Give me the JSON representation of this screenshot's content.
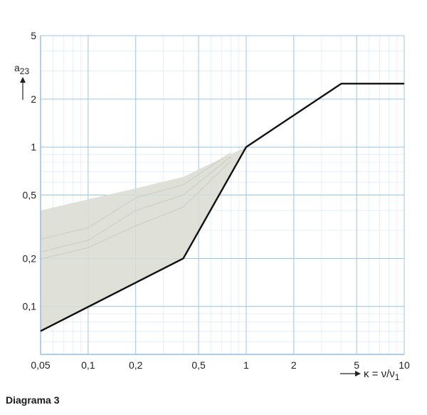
{
  "chart_data": {
    "type": "line",
    "x_scale": "log",
    "y_scale": "log",
    "xlim": [
      0.05,
      10
    ],
    "ylim": [
      0.05,
      5
    ],
    "x_ticks": [
      0.05,
      0.1,
      0.2,
      0.5,
      1,
      2,
      5,
      10
    ],
    "x_tick_labels": [
      "0,05",
      "0,1",
      "0,2",
      "0,5",
      "1",
      "2",
      "5",
      "10"
    ],
    "y_ticks": [
      0.1,
      0.2,
      0.5,
      1,
      2,
      5
    ],
    "y_tick_labels": [
      "0,1",
      "0,2",
      "0,5",
      "1",
      "2",
      "5"
    ],
    "grid": true,
    "ylabel": "a23",
    "xlabel": "κ = ν/ν1",
    "series": [
      {
        "x": [
          0.05,
          0.4,
          1,
          4,
          10
        ],
        "y": [
          0.07,
          0.2,
          1,
          2.5,
          2.5
        ]
      }
    ],
    "shaded_region": {
      "x": [
        0.05,
        0.1,
        0.2,
        0.4,
        0.7,
        1,
        0.4,
        0.05
      ],
      "y": [
        0.4,
        0.47,
        0.55,
        0.65,
        0.85,
        1,
        0.2,
        0.07
      ]
    }
  },
  "caption": "Diagrama 3"
}
